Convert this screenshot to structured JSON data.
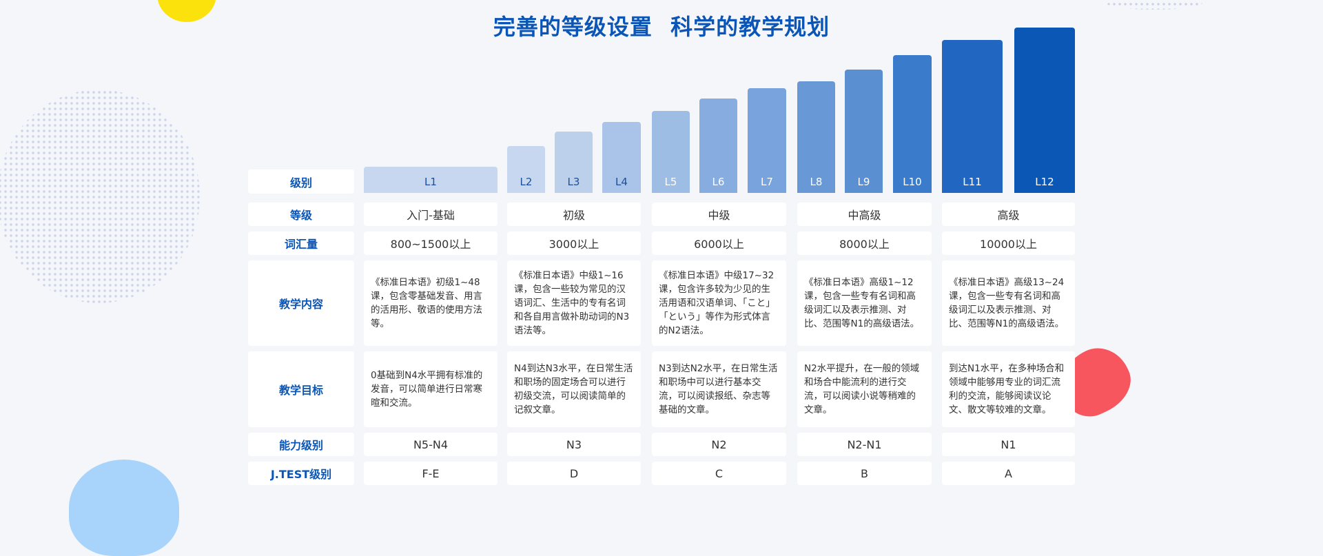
{
  "title": "完善的等级设置  科学的教学规划",
  "row_labels": {
    "level": "级别",
    "grade": "等级",
    "vocab": "词汇量",
    "content": "教学内容",
    "goal": "教学目标",
    "ability": "能力级别",
    "jtest": "J.TEST级别"
  },
  "levels": [
    {
      "label": "L1",
      "color": "#c6d7ef"
    },
    {
      "label": "L2",
      "color": "#c6d7ef"
    },
    {
      "label": "L3",
      "color": "#bcd0ec"
    },
    {
      "label": "L4",
      "color": "#a9c4e8"
    },
    {
      "label": "L5",
      "color": "#9ebde4"
    },
    {
      "label": "L6",
      "color": "#86ace0"
    },
    {
      "label": "L7",
      "color": "#78a3dc"
    },
    {
      "label": "L8",
      "color": "#6899d6"
    },
    {
      "label": "L9",
      "color": "#5a8fd2"
    },
    {
      "label": "L10",
      "color": "#3b7bcb"
    },
    {
      "label": "L11",
      "color": "#2167c1"
    },
    {
      "label": "L12",
      "color": "#0a57b6"
    }
  ],
  "groups": [
    {
      "grade": "入门-基础",
      "vocab": "800~1500以上",
      "content": "《标准日本语》初级1~48课，包含零基础发音、用言的活用形、敬语的使用方法等。",
      "goal": "0基础到N4水平拥有标准的发音，可以简单进行日常寒暄和交流。",
      "ability": "N5-N4",
      "jtest": "F-E"
    },
    {
      "grade": "初级",
      "vocab": "3000以上",
      "content": "《标准日本语》中级1~16课，包含一些较为常见的汉语词汇、生活中的专有名词和各自用言做补助动词的N3语法等。",
      "goal": "N4到达N3水平，在日常生活和职场的固定场合可以进行初级交流，可以阅读简单的记叙文章。",
      "ability": "N3",
      "jtest": "D"
    },
    {
      "grade": "中级",
      "vocab": "6000以上",
      "content": "《标准日本语》中级17~32课，包含许多较为少见的生活用语和汉语单词、「こと」「という」等作为形式体言的N2语法。",
      "goal": "N3到达N2水平，在日常生活和职场中可以进行基本交流，可以阅读报纸、杂志等基础的文章。",
      "ability": "N2",
      "jtest": "C"
    },
    {
      "grade": "中高级",
      "vocab": "8000以上",
      "content": "《标准日本语》高级1~12课，包含一些专有名词和高级词汇以及表示推测、对比、范围等N1的高级语法。",
      "goal": "N2水平提升，在一般的领域和场合中能流利的进行交流，可以阅读小说等稍难的文章。",
      "ability": "N2-N1",
      "jtest": "B"
    },
    {
      "grade": "高级",
      "vocab": "10000以上",
      "content": "《标准日本语》高级13~24课，包含一些专有名词和高级词汇以及表示推测、对比、范围等N1的高级语法。",
      "goal": "到达N1水平，在多种场合和领域中能够用专业的词汇流利的交流，能够阅读议论文、散文等较难的文章。",
      "ability": "N1",
      "jtest": "A"
    }
  ]
}
